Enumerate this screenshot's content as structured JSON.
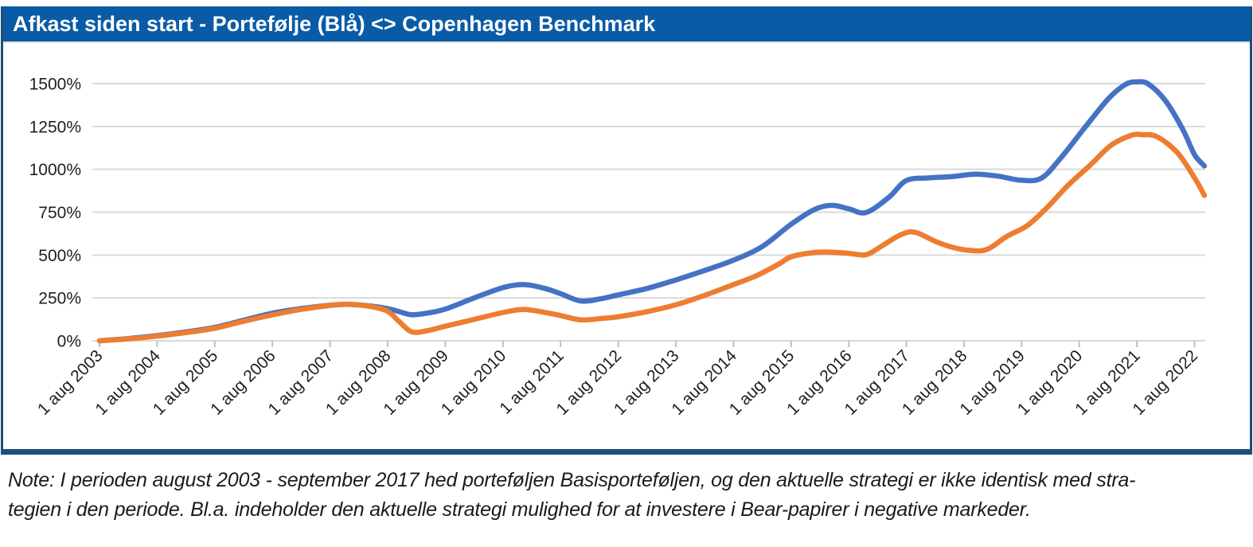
{
  "header": {
    "title": "Afkast siden start - Portefølje (Blå) <> Copenhagen Benchmark",
    "bg_color": "#0a5ba6",
    "text_color": "#ffffff"
  },
  "frame": {
    "border_color": "#1d4e7e"
  },
  "chart_data": {
    "type": "line",
    "title": "Afkast siden start - Portefølje (Blå) <> Copenhagen Benchmark",
    "x_axis": {
      "unit": "years_since_first_tick",
      "tick_labels": [
        "1 aug 2003",
        "1 aug 2004",
        "1 aug 2005",
        "1 aug 2006",
        "1 aug 2007",
        "1 aug 2008",
        "1 aug 2009",
        "1 aug 2010",
        "1 aug 2011",
        "1 aug 2012",
        "1 aug 2013",
        "1 aug 2014",
        "1 aug 2015",
        "1 aug 2016",
        "1 aug 2017",
        "1 aug 2018",
        "1 aug 2019",
        "1 aug 2020",
        "1 aug 2021",
        "1 aug 2022"
      ],
      "label_rotation_deg": -45
    },
    "y_axis": {
      "tick_labels": [
        "0%",
        "250%",
        "500%",
        "750%",
        "1000%",
        "1250%",
        "1500%"
      ],
      "tick_values_pct": [
        0,
        250,
        500,
        750,
        1000,
        1250,
        1500
      ],
      "min_pct": 0,
      "max_pct": 1560
    },
    "grid": true,
    "legend_position": "none",
    "colors": {
      "gridline": "#d9d9d9",
      "tick_mark": "#c0c0c0",
      "axis_text": "#1f1f1f"
    },
    "series": [
      {
        "name": "Portefølje (Blå)",
        "color": "#4472C4",
        "points_t_pct": [
          [
            0,
            0
          ],
          [
            0.5,
            13
          ],
          [
            1,
            30
          ],
          [
            1.5,
            52
          ],
          [
            2,
            78
          ],
          [
            2.5,
            120
          ],
          [
            3,
            161
          ],
          [
            3.5,
            188
          ],
          [
            4,
            207
          ],
          [
            4.3,
            212
          ],
          [
            4.7,
            203
          ],
          [
            5,
            188
          ],
          [
            5.2,
            170
          ],
          [
            5.42,
            152
          ],
          [
            5.7,
            162
          ],
          [
            6,
            185
          ],
          [
            6.5,
            250
          ],
          [
            7,
            310
          ],
          [
            7.35,
            328
          ],
          [
            7.7,
            308
          ],
          [
            8,
            275
          ],
          [
            8.35,
            232
          ],
          [
            8.7,
            245
          ],
          [
            9,
            268
          ],
          [
            9.5,
            305
          ],
          [
            10,
            355
          ],
          [
            10.5,
            410
          ],
          [
            11,
            470
          ],
          [
            11.5,
            550
          ],
          [
            12,
            680
          ],
          [
            12.4,
            765
          ],
          [
            12.7,
            790
          ],
          [
            13,
            770
          ],
          [
            13.3,
            748
          ],
          [
            13.7,
            838
          ],
          [
            14,
            935
          ],
          [
            14.4,
            950
          ],
          [
            14.8,
            958
          ],
          [
            15.2,
            972
          ],
          [
            15.6,
            960
          ],
          [
            16,
            936
          ],
          [
            16.35,
            950
          ],
          [
            16.7,
            1075
          ],
          [
            17.1,
            1245
          ],
          [
            17.5,
            1410
          ],
          [
            17.8,
            1495
          ],
          [
            18,
            1510
          ],
          [
            18.2,
            1497
          ],
          [
            18.5,
            1398
          ],
          [
            18.8,
            1230
          ],
          [
            19,
            1085
          ],
          [
            19.17,
            1020
          ]
        ]
      },
      {
        "name": "Copenhagen Benchmark",
        "color": "#ED7D31",
        "points_t_pct": [
          [
            0,
            0
          ],
          [
            0.5,
            11
          ],
          [
            1,
            27
          ],
          [
            1.5,
            48
          ],
          [
            2,
            73
          ],
          [
            2.5,
            114
          ],
          [
            3,
            151
          ],
          [
            3.5,
            183
          ],
          [
            4,
            206
          ],
          [
            4.3,
            213
          ],
          [
            4.7,
            200
          ],
          [
            5,
            172
          ],
          [
            5.2,
            112
          ],
          [
            5.42,
            52
          ],
          [
            5.7,
            60
          ],
          [
            6,
            85
          ],
          [
            6.5,
            125
          ],
          [
            7,
            165
          ],
          [
            7.35,
            183
          ],
          [
            7.7,
            167
          ],
          [
            8,
            147
          ],
          [
            8.35,
            122
          ],
          [
            8.7,
            130
          ],
          [
            9,
            140
          ],
          [
            9.5,
            170
          ],
          [
            10,
            210
          ],
          [
            10.5,
            265
          ],
          [
            11,
            328
          ],
          [
            11.4,
            380
          ],
          [
            11.8,
            450
          ],
          [
            12,
            490
          ],
          [
            12.4,
            515
          ],
          [
            12.7,
            517
          ],
          [
            13,
            510
          ],
          [
            13.3,
            502
          ],
          [
            13.55,
            548
          ],
          [
            13.9,
            618
          ],
          [
            14.15,
            633
          ],
          [
            14.5,
            580
          ],
          [
            14.8,
            545
          ],
          [
            15.1,
            527
          ],
          [
            15.4,
            533
          ],
          [
            15.75,
            610
          ],
          [
            16.1,
            672
          ],
          [
            16.45,
            780
          ],
          [
            16.8,
            905
          ],
          [
            17.2,
            1028
          ],
          [
            17.55,
            1140
          ],
          [
            17.9,
            1198
          ],
          [
            18.1,
            1202
          ],
          [
            18.35,
            1190
          ],
          [
            18.7,
            1098
          ],
          [
            19,
            950
          ],
          [
            19.17,
            848
          ]
        ]
      }
    ]
  },
  "note": {
    "lines": [
      "Note: I perioden august 2003 - september 2017 hed porteføljen Basisporteføljen, og den aktuelle strategi er ikke identisk med stra-",
      "tegien i den periode. Bl.a. indeholder den aktuelle strategi mulighed for at investere i Bear-papirer i negative markeder."
    ]
  }
}
